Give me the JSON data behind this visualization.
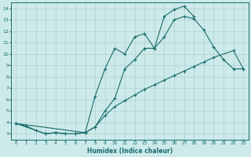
{
  "xlabel": "Humidex (Indice chaleur)",
  "bg_color": "#cceaea",
  "line_color": "#1a6b6b",
  "grid_color": "#b0d0d0",
  "xlim": [
    -0.5,
    23.5
  ],
  "ylim": [
    2.5,
    14.5
  ],
  "xticks": [
    0,
    1,
    2,
    3,
    4,
    5,
    6,
    7,
    8,
    9,
    10,
    11,
    12,
    13,
    14,
    15,
    16,
    17,
    18,
    19,
    20,
    21,
    22,
    23
  ],
  "yticks": [
    3,
    4,
    5,
    6,
    7,
    8,
    9,
    10,
    11,
    12,
    13,
    14
  ],
  "curve1_x": [
    0,
    1,
    2,
    3,
    4,
    5,
    6,
    7,
    8,
    9,
    10,
    11,
    12,
    13,
    14,
    15,
    16,
    17,
    18
  ],
  "curve1_y": [
    3.9,
    3.7,
    3.3,
    3.0,
    3.1,
    3.0,
    3.0,
    3.1,
    6.3,
    8.7,
    10.5,
    10.0,
    11.5,
    11.8,
    10.5,
    13.3,
    13.9,
    14.2,
    13.3
  ],
  "curve2_x": [
    0,
    3,
    4,
    5,
    6,
    7,
    8,
    9,
    10,
    11,
    12,
    13,
    14,
    15,
    16,
    17,
    18,
    19,
    20,
    22,
    23
  ],
  "curve2_y": [
    3.9,
    3.0,
    3.1,
    3.0,
    3.0,
    3.1,
    3.6,
    4.6,
    5.4,
    5.9,
    6.4,
    6.9,
    7.3,
    7.7,
    8.1,
    8.5,
    8.9,
    9.3,
    9.7,
    10.3,
    8.7
  ],
  "curve3_x": [
    0,
    7,
    8,
    9,
    10,
    11,
    12,
    13,
    14,
    15,
    16,
    17,
    18,
    19,
    20,
    21,
    22,
    23
  ],
  "curve3_y": [
    3.9,
    3.1,
    3.6,
    5.0,
    6.1,
    8.7,
    9.5,
    10.5,
    10.5,
    11.5,
    13.0,
    13.3,
    13.1,
    12.1,
    10.6,
    9.5,
    8.7,
    8.7
  ]
}
